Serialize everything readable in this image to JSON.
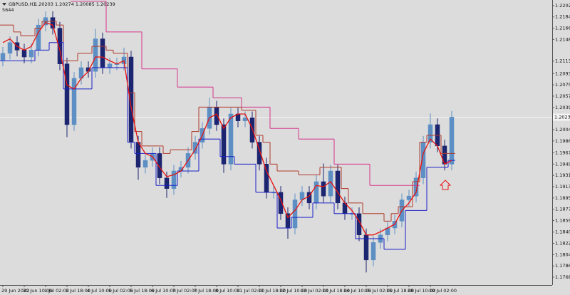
{
  "chart_data": {
    "type": "candlestick",
    "symbol": "GBPUSD,H1",
    "ohlc_text": "1.20203 1.20274 1.20085 1.20239",
    "subtext": "5644",
    "background": "#dcdcdc",
    "grid": false,
    "ylim": [
      1.1756,
      1.2211
    ],
    "yticks": [
      {
        "value": 1.2202,
        "label": "1.22020"
      },
      {
        "value": 1.2184,
        "label": "1.21840"
      },
      {
        "value": 1.2166,
        "label": "1.21660"
      },
      {
        "value": 1.2148,
        "label": "1.21480"
      },
      1.21135,
      1.20935,
      1.20755,
      1.20575,
      1.20395,
      {
        "value": 1.2004,
        "label": "1.20040"
      },
      {
        "value": 1.1986,
        "label": "1.19860"
      },
      {
        "value": 1.1967,
        "label": "1.19670"
      },
      {
        "value": 1.1949,
        "label": "1.19490"
      },
      {
        "value": 1.1931,
        "label": "1.19310"
      },
      {
        "value": 1.1913,
        "label": "1.19130"
      },
      {
        "value": 1.1895,
        "label": "1.18950"
      },
      {
        "value": 1.1877,
        "label": "1.18770"
      },
      {
        "value": 1.1859,
        "label": "1.18590"
      },
      1.18405,
      1.18225,
      1.18045,
      1.17865,
      1.17685
    ],
    "current_price": 1.20239,
    "categories": [
      "29 Jun 2022",
      null,
      null,
      "30 Jun 10:00",
      null,
      null,
      "1 Jul 02:00",
      null,
      null,
      "1 Jul 18:00",
      null,
      null,
      "4 Jul 10:00",
      null,
      null,
      "5 Jul 02:00",
      null,
      null,
      "5 Jul 18:00",
      null,
      null,
      "6 Jul 10:00",
      null,
      null,
      "7 Jul 02:00",
      null,
      null,
      "7 Jul 18:00",
      null,
      null,
      "8 Jul 10:00",
      null,
      null,
      "11 Jul 02:00",
      null,
      null,
      "11 Jul 18:00",
      null,
      null,
      "12 Jul 10:00",
      null,
      null,
      "13 Jul 02:00",
      null,
      null,
      "13 Jul 18:00",
      null,
      null,
      "14 Jul 10:00",
      null,
      null,
      "15 Jul 02:00",
      null,
      null,
      "15 Jul 18:00",
      null,
      null,
      "18 Jul 10:00",
      null,
      null,
      "19 Jul 02:00",
      null,
      null,
      null
    ],
    "candles": {
      "up_color": "#5d8fc4",
      "down_color": "#1c2570",
      "open": [
        1.2115,
        1.2126,
        1.2143,
        1.2131,
        1.212,
        1.2131,
        1.2171,
        1.2183,
        1.2166,
        1.2109,
        1.2012,
        1.2086,
        1.2103,
        1.2097,
        1.2149,
        1.2103,
        1.2109,
        1.2109,
        1.212,
        1.1984,
        1.1944,
        1.1955,
        1.1966,
        1.1927,
        1.191,
        1.1938,
        1.1944,
        1.1966,
        1.1984,
        1.2006,
        1.204,
        1.2012,
        1.1949,
        1.2029,
        1.2018,
        1.2023,
        1.1984,
        1.1949,
        1.1904,
        1.1904,
        1.187,
        1.1847,
        1.1892,
        1.1904,
        1.1887,
        1.1921,
        1.1898,
        1.1938,
        1.1887,
        1.187,
        1.187,
        1.1836,
        1.1796,
        1.1824,
        1.1836,
        1.1847,
        1.1858,
        1.1892,
        1.1898,
        1.1927,
        1.1984,
        1.2012,
        1.1978,
        1.1949
      ],
      "high": [
        1.2136,
        1.2153,
        1.2153,
        1.2141,
        1.2141,
        1.2181,
        1.2193,
        1.2193,
        1.2176,
        1.2119,
        1.2096,
        1.2113,
        1.2113,
        1.2165,
        1.2159,
        1.2119,
        1.2119,
        1.2135,
        1.213,
        1.1994,
        1.1965,
        1.1976,
        1.1976,
        1.1937,
        1.1948,
        1.1954,
        1.1976,
        1.1994,
        1.2016,
        1.2055,
        1.205,
        1.2022,
        1.2039,
        1.2039,
        1.2033,
        1.2033,
        1.1994,
        1.1959,
        1.1914,
        1.1914,
        1.188,
        1.1902,
        1.1914,
        1.1914,
        1.1931,
        1.195,
        1.1948,
        1.1948,
        1.1897,
        1.188,
        1.188,
        1.1846,
        1.1834,
        1.1846,
        1.1857,
        1.1868,
        1.1902,
        1.1908,
        1.1937,
        1.1994,
        1.203,
        1.2022,
        1.1988,
        1.2034
      ],
      "low": [
        1.2105,
        1.2116,
        1.2121,
        1.211,
        1.211,
        1.2121,
        1.2161,
        1.2156,
        1.2099,
        1.1992,
        1.2002,
        1.2076,
        1.2087,
        1.2087,
        1.2093,
        1.2093,
        1.2099,
        1.2099,
        1.1974,
        1.1924,
        1.1934,
        1.1945,
        1.1917,
        1.1895,
        1.19,
        1.1928,
        1.1934,
        1.1956,
        1.1974,
        1.1996,
        1.2002,
        1.1935,
        1.1939,
        1.2008,
        1.2008,
        1.1974,
        1.1939,
        1.1894,
        1.1894,
        1.186,
        1.183,
        1.1837,
        1.1882,
        1.1877,
        1.1877,
        1.1888,
        1.1888,
        1.1877,
        1.186,
        1.186,
        1.1826,
        1.1776,
        1.1786,
        1.1814,
        1.1826,
        1.1837,
        1.1848,
        1.1882,
        1.1888,
        1.1917,
        1.1974,
        1.1968,
        1.1939,
        1.1939
      ],
      "close": [
        1.2126,
        1.2143,
        1.2131,
        1.212,
        1.2131,
        1.2171,
        1.2183,
        1.2166,
        1.2109,
        1.2012,
        1.2086,
        1.2103,
        1.2097,
        1.2149,
        1.2103,
        1.2109,
        1.2109,
        1.212,
        1.1984,
        1.1944,
        1.1955,
        1.1966,
        1.1927,
        1.191,
        1.1938,
        1.1944,
        1.1966,
        1.1984,
        1.2006,
        1.204,
        1.2012,
        1.1949,
        1.2029,
        1.2018,
        1.2023,
        1.1984,
        1.1949,
        1.1904,
        1.1904,
        1.187,
        1.1847,
        1.1892,
        1.1904,
        1.1887,
        1.1921,
        1.1898,
        1.1938,
        1.1887,
        1.187,
        1.187,
        1.1836,
        1.1796,
        1.1824,
        1.1836,
        1.1847,
        1.1858,
        1.1892,
        1.1898,
        1.1927,
        1.1984,
        1.2012,
        1.1978,
        1.1949,
        1.2024
      ]
    },
    "series": [
      {
        "color": "#d6338a",
        "step": true,
        "values": [
          null,
          null,
          null,
          null,
          null,
          null,
          null,
          null,
          null,
          null,
          1.2209,
          1.2209,
          1.2209,
          1.2209,
          1.2209,
          1.216,
          1.216,
          1.216,
          1.216,
          1.216,
          1.2101,
          1.2101,
          1.2101,
          1.2101,
          1.2101,
          1.2072,
          1.2072,
          1.2072,
          1.2072,
          1.2072,
          1.2055,
          1.2055,
          1.2055,
          1.2055,
          1.204,
          1.204,
          1.204,
          1.204,
          1.2006,
          1.2006,
          1.2006,
          1.2006,
          1.1989,
          1.1989,
          1.1989,
          1.1989,
          1.1989,
          1.1949,
          1.1949,
          1.1949,
          1.1949,
          1.1949,
          1.1915,
          1.1915,
          1.1915,
          1.1915,
          1.1915,
          1.1915,
          1.1915,
          null,
          null,
          null,
          null,
          null
        ]
      },
      {
        "color": "#b03a2a",
        "step": true,
        "values": [
          1.2171,
          1.2171,
          1.216,
          1.2154,
          1.2154,
          1.2166,
          1.2177,
          1.2177,
          1.2171,
          1.2114,
          1.2114,
          1.2126,
          1.2126,
          1.2137,
          1.2137,
          1.2131,
          1.2126,
          1.2126,
          1.2063,
          1.2001,
          1.1978,
          1.1978,
          1.1978,
          1.1966,
          1.1972,
          1.1972,
          1.1972,
          1.2001,
          1.204,
          1.204,
          1.204,
          1.204,
          1.204,
          1.204,
          1.2035,
          1.2035,
          1.1995,
          1.1984,
          1.1949,
          1.1938,
          1.1938,
          1.1938,
          1.1932,
          1.1932,
          1.1932,
          1.1944,
          1.1944,
          1.1944,
          1.191,
          1.1887,
          1.1887,
          1.187,
          1.187,
          1.187,
          1.1858,
          1.187,
          1.1881,
          1.1881,
          1.1921,
          1.1984,
          1.1995,
          1.1995,
          1.1966,
          1.1966
        ]
      },
      {
        "color": "#1a1fc7",
        "step": true,
        "values": [
          1.2114,
          1.2114,
          1.2114,
          1.2114,
          1.2114,
          1.2131,
          1.2131,
          1.2143,
          1.2143,
          1.2069,
          1.2069,
          1.2069,
          1.2069,
          1.2103,
          1.2103,
          1.2103,
          1.2103,
          1.2103,
          1.1984,
          1.1966,
          1.1966,
          1.1966,
          1.1915,
          1.1915,
          1.1915,
          1.1938,
          1.1938,
          1.1938,
          1.1989,
          1.1989,
          1.1989,
          1.1961,
          1.1961,
          1.1949,
          1.1949,
          1.1949,
          1.1904,
          1.1904,
          1.1904,
          1.1847,
          1.1847,
          1.1864,
          1.1864,
          1.1864,
          1.1887,
          1.1887,
          1.1887,
          1.187,
          1.187,
          1.187,
          1.183,
          1.183,
          1.183,
          1.183,
          1.1813,
          1.1813,
          1.1813,
          1.1875,
          1.1875,
          1.1875,
          1.1944,
          1.1944,
          1.1944,
          1.1955
        ]
      },
      {
        "color": "#e8120f",
        "step": false,
        "values": [
          1.2143,
          1.2149,
          1.2137,
          1.2131,
          1.2137,
          1.216,
          1.2175,
          1.2171,
          1.2131,
          1.2075,
          1.2069,
          1.2086,
          1.2097,
          1.212,
          1.212,
          1.2114,
          1.2109,
          1.2114,
          1.204,
          1.1984,
          1.1966,
          1.1961,
          1.1944,
          1.1929,
          1.1932,
          1.1938,
          1.1955,
          1.1972,
          1.1995,
          1.2023,
          1.2029,
          1.2006,
          1.2023,
          1.2029,
          1.2029,
          1.2006,
          1.1972,
          1.1938,
          1.1915,
          1.1892,
          1.1864,
          1.1875,
          1.1892,
          1.1898,
          1.1915,
          1.1913,
          1.1921,
          1.1904,
          1.1887,
          1.1875,
          1.1858,
          1.1836,
          1.1836,
          1.1841,
          1.1847,
          1.1853,
          1.1875,
          1.1887,
          1.1904,
          1.1966,
          1.1989,
          1.1978,
          1.1949,
          1.1955
        ]
      }
    ]
  }
}
